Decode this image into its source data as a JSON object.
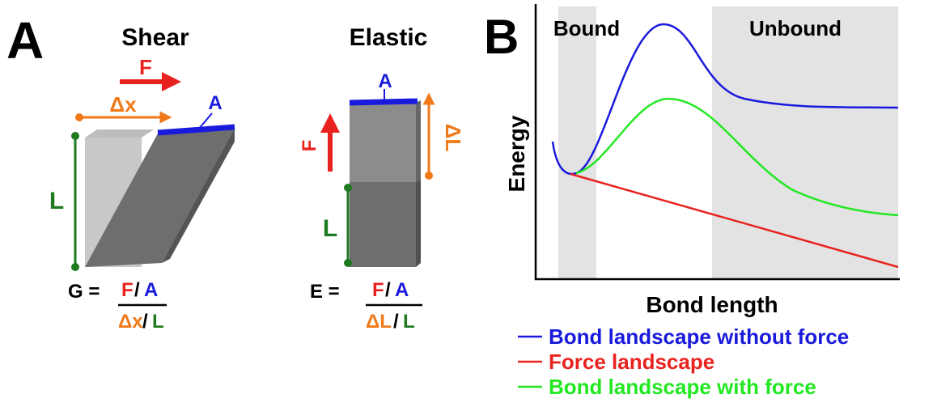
{
  "panel_a": {
    "label": "A",
    "shear": {
      "title": "Shear",
      "force": "F",
      "displacement": "Δx",
      "area": "A",
      "length": "L",
      "formula": {
        "lhs": "G =",
        "num_force": "F",
        "num_sep": "/",
        "num_area": "A",
        "den_change": "Δx",
        "den_sep": "/",
        "den_length": "L"
      }
    },
    "elastic": {
      "title": "Elastic",
      "force": "F",
      "displacement": "ΔL",
      "area": "A",
      "length": "L",
      "formula": {
        "lhs": "E =",
        "num_force": "F",
        "num_sep": "/",
        "num_area": "A",
        "den_change": "ΔL",
        "den_sep": "/",
        "den_length": "L"
      }
    }
  },
  "panel_b": {
    "label": "B",
    "regions": [
      "Bound",
      "Unbound"
    ],
    "y_label": "Energy",
    "x_label": "Bond length",
    "legend": [
      {
        "name": "Bond landscape without force",
        "color": "#1a1adc"
      },
      {
        "name": "Force landscape",
        "color": "#e8231f"
      },
      {
        "name": "Bond landscape with force",
        "color": "#22e822"
      }
    ]
  }
}
